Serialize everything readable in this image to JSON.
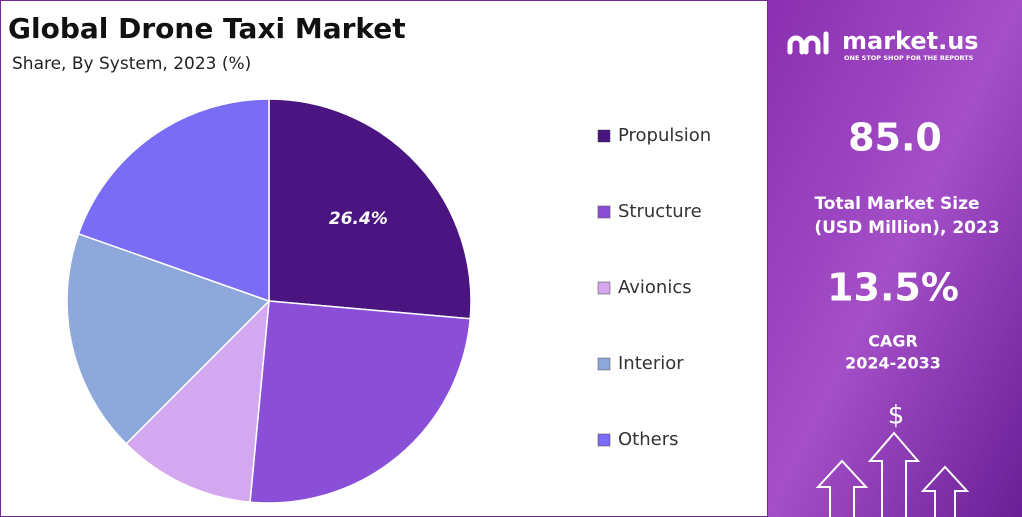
{
  "chart_data": {
    "type": "pie",
    "title": "Global Drone Taxi Market",
    "subtitle": "Share, By System, 2023 (%)",
    "categories": [
      "Propulsion",
      "Structure",
      "Avionics",
      "Interior",
      "Others"
    ],
    "values": [
      26.4,
      25.1,
      11.0,
      17.9,
      19.6
    ],
    "value_labels": [
      "26.4%",
      null,
      null,
      null,
      null
    ],
    "colors": [
      "#4a1580",
      "#8a4fd6",
      "#d4a8f0",
      "#8fa8dc",
      "#7b6cf5"
    ],
    "legend": "right"
  },
  "sidebar": {
    "logo": "market.us",
    "tagline": "ONE STOP SHOP FOR THE REPORTS",
    "market_size": "85.0",
    "market_size_label": [
      "Total Market Size",
      "(USD Million), 2023"
    ],
    "cagr": "13.5%",
    "cagr_label": [
      "CAGR",
      "2024-2033"
    ],
    "icon_symbol": "$"
  }
}
